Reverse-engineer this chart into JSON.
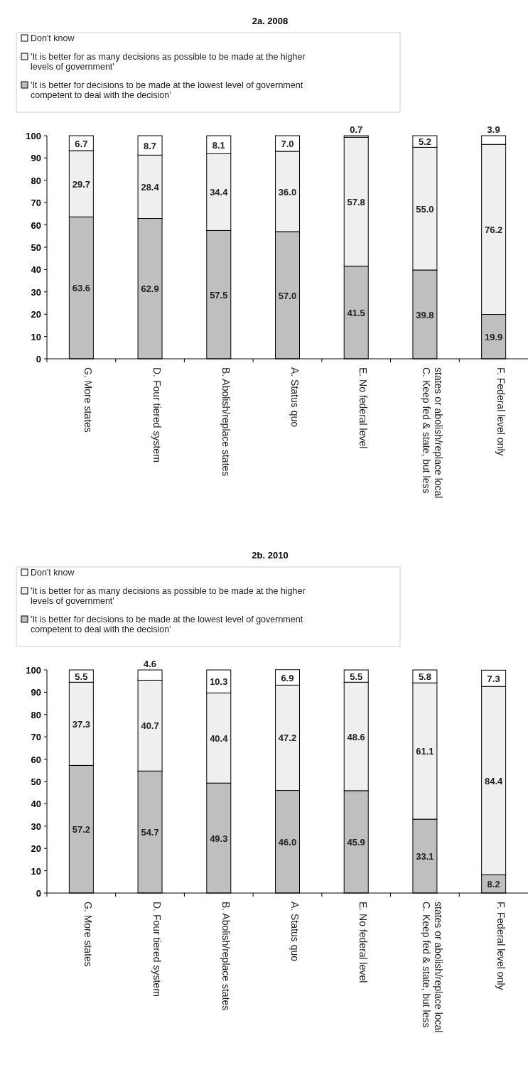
{
  "chart_data": [
    {
      "type": "bar",
      "title": "2a. 2008",
      "stacked": true,
      "legend": "top left",
      "data_labels": true,
      "ylim": [
        0,
        100
      ],
      "yticks": [
        0,
        10,
        20,
        30,
        40,
        50,
        60,
        70,
        80,
        90,
        100
      ],
      "grid": false,
      "categories": [
        "G. More states",
        "D. Four tiered system",
        "B. Abolish/replace states",
        "A. Status quo",
        "E. No federal level",
        "C. Keep fed & state, but less states or abolish/replace local",
        "F. Federal level only"
      ],
      "series": [
        {
          "name": "'It is better for decisions to be made at the lowest level of government competent to deal with the decision'",
          "color": "#bfbfbf",
          "values": [
            63.6,
            62.9,
            57.5,
            57.0,
            41.5,
            39.8,
            19.9
          ],
          "value_labels": [
            "63.6",
            "62.9",
            "57.5",
            "57.0",
            "41.5",
            "39.8",
            "19.9"
          ]
        },
        {
          "name": "'It is better for as many decisions as possible to be made at the higher levels of government'",
          "color": "#efefef",
          "values": [
            29.7,
            28.4,
            34.4,
            36.0,
            57.8,
            55.0,
            76.2
          ],
          "value_labels": [
            "29.7",
            "28.4",
            "34.4",
            "36.0",
            "57.8",
            "55.0",
            "76.2"
          ]
        },
        {
          "name": "Don't know",
          "color": "#ffffff",
          "values": [
            6.7,
            8.7,
            8.1,
            7.0,
            0.7,
            5.2,
            3.9
          ],
          "value_labels": [
            "6.7",
            "8.7",
            "8.1",
            "7.0",
            "0.7",
            "5.2",
            "3.9"
          ]
        }
      ]
    },
    {
      "type": "bar",
      "title": "2b. 2010",
      "stacked": true,
      "legend": "top left",
      "data_labels": true,
      "ylim": [
        0,
        100
      ],
      "yticks": [
        0,
        10,
        20,
        30,
        40,
        50,
        60,
        70,
        80,
        90,
        100
      ],
      "grid": false,
      "categories": [
        "G. More states",
        "D. Four tiered system",
        "B. Abolish/replace states",
        "A. Status quo",
        "E. No federal level",
        "C. Keep fed & state, but less states or abolish/replace local",
        "F. Federal level only"
      ],
      "series": [
        {
          "name": "'It is better for decisions to be made at the lowest level of government competent to deal with the decision'",
          "color": "#bfbfbf",
          "values": [
            57.2,
            54.7,
            49.3,
            46.0,
            45.9,
            33.1,
            8.2
          ],
          "value_labels": [
            "57.2",
            "54.7",
            "49.3",
            "46.0",
            "45.9",
            "33.1",
            "8.2"
          ]
        },
        {
          "name": "'It is better for as many decisions as possible to be made at the higher levels of government'",
          "color": "#efefef",
          "values": [
            37.3,
            40.7,
            40.4,
            47.2,
            48.6,
            61.1,
            84.4
          ],
          "value_labels": [
            "37.3",
            "40.7",
            "40.4",
            "47.2",
            "48.6",
            "61.1",
            "84.4"
          ]
        },
        {
          "name": "Don't know",
          "color": "#ffffff",
          "values": [
            5.5,
            4.6,
            10.3,
            6.9,
            5.5,
            5.8,
            7.3
          ],
          "value_labels": [
            "5.5",
            "4.6",
            "10.3",
            "6.9",
            "5.5",
            "5.8",
            "7.3"
          ]
        }
      ]
    }
  ]
}
